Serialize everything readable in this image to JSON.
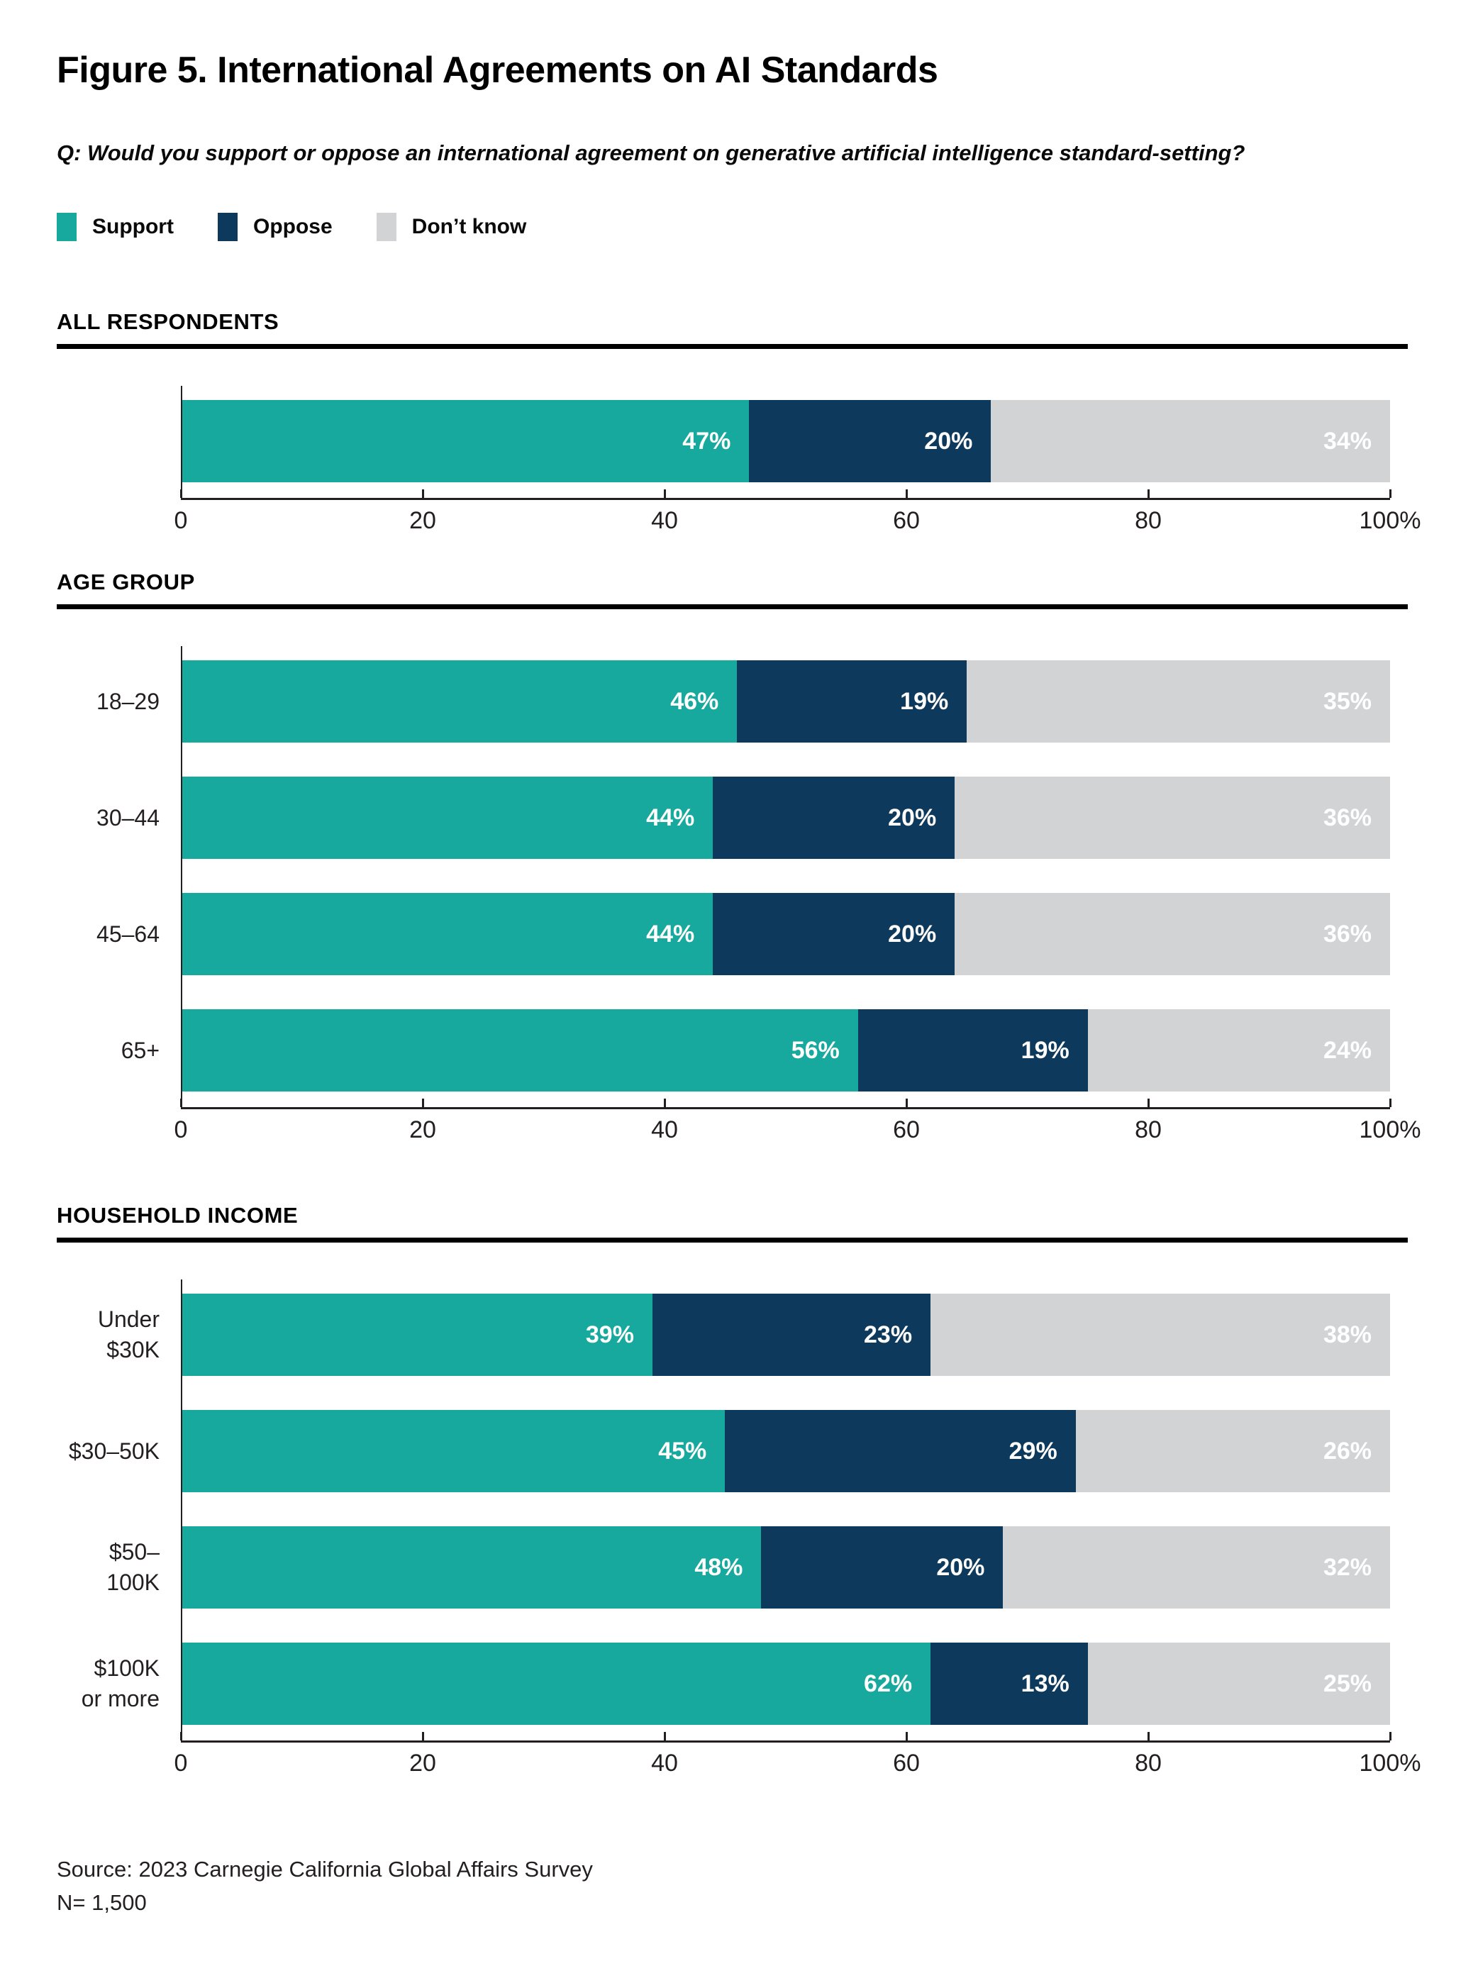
{
  "title": "Figure 5. International Agreements on AI Standards",
  "question": "Q: Would you support or oppose an international agreement on generative artificial intelligence standard-setting?",
  "legend": [
    {
      "label": "Support",
      "color": "#18a99e"
    },
    {
      "label": "Oppose",
      "color": "#0d3a5c"
    },
    {
      "label": "Don’t know",
      "color": "#d1d3d4"
    }
  ],
  "colors": {
    "support": "#18a99e",
    "oppose": "#0d3a5c",
    "dont_know": "#d1d3d4",
    "axis": "#231f20",
    "rule": "#000000",
    "value_text": "#ffffff"
  },
  "chart_data": [
    {
      "type": "bar",
      "stacked": true,
      "orientation": "horizontal",
      "section": "ALL RESPONDENTS",
      "categories": [
        ""
      ],
      "series": [
        {
          "name": "Support",
          "color": "#18a99e",
          "values": [
            47
          ]
        },
        {
          "name": "Oppose",
          "color": "#0d3a5c",
          "values": [
            20
          ]
        },
        {
          "name": "Don’t know",
          "color": "#d1d3d4",
          "values": [
            34
          ]
        }
      ],
      "value_suffix": "%",
      "xlim": [
        0,
        100
      ],
      "x_ticks": [
        "0",
        "20",
        "40",
        "60",
        "80",
        "100%"
      ],
      "grid": false,
      "legend_position": "top"
    },
    {
      "type": "bar",
      "stacked": true,
      "orientation": "horizontal",
      "section": "AGE GROUP",
      "categories": [
        "18–29",
        "30–44",
        "45–64",
        "65+"
      ],
      "series": [
        {
          "name": "Support",
          "color": "#18a99e",
          "values": [
            46,
            44,
            44,
            56
          ]
        },
        {
          "name": "Oppose",
          "color": "#0d3a5c",
          "values": [
            19,
            20,
            20,
            19
          ]
        },
        {
          "name": "Don’t know",
          "color": "#d1d3d4",
          "values": [
            35,
            36,
            36,
            24
          ]
        }
      ],
      "value_suffix": "%",
      "xlim": [
        0,
        100
      ],
      "x_ticks": [
        "0",
        "20",
        "40",
        "60",
        "80",
        "100%"
      ],
      "grid": false,
      "legend_position": "top"
    },
    {
      "type": "bar",
      "stacked": true,
      "orientation": "horizontal",
      "section": "HOUSEHOLD INCOME",
      "categories": [
        "Under $30K",
        "$30–50K",
        "$50–100K",
        "$100K\nor more"
      ],
      "series": [
        {
          "name": "Support",
          "color": "#18a99e",
          "values": [
            39,
            45,
            48,
            62
          ]
        },
        {
          "name": "Oppose",
          "color": "#0d3a5c",
          "values": [
            23,
            29,
            20,
            13
          ]
        },
        {
          "name": "Don’t know",
          "color": "#d1d3d4",
          "values": [
            38,
            26,
            32,
            25
          ]
        }
      ],
      "value_suffix": "%",
      "xlim": [
        0,
        100
      ],
      "x_ticks": [
        "0",
        "20",
        "40",
        "60",
        "80",
        "100%"
      ],
      "grid": false,
      "legend_position": "top"
    }
  ],
  "source": {
    "line1": "Source: 2023 Carnegie California Global Affairs Survey",
    "line2": "N= 1,500"
  }
}
